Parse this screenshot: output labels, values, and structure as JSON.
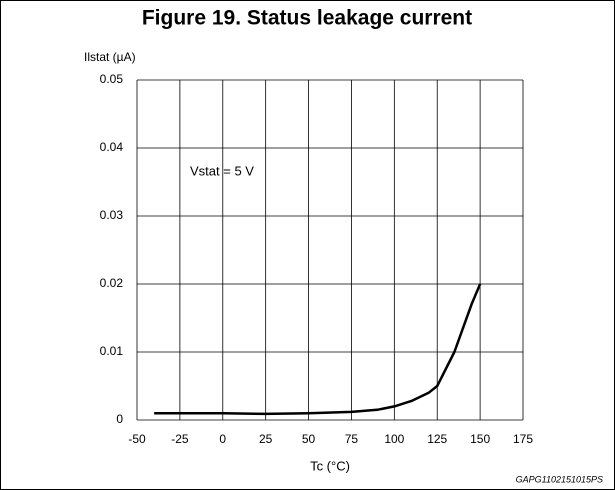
{
  "chart_data": {
    "type": "line",
    "title": "Figure 19. Status leakage current",
    "y_label": "Ilstat (µA)",
    "x_label": "Tc (°C)",
    "annotation": "Vstat = 5 V",
    "footer": "GAPG1102151015PS",
    "x": [
      -40,
      0,
      25,
      50,
      75,
      90,
      100,
      110,
      120,
      125,
      130,
      135,
      140,
      145,
      150
    ],
    "series": [
      {
        "color": "#000000",
        "values": [
          0.001,
          0.001,
          0.0009,
          0.001,
          0.0012,
          0.0015,
          0.002,
          0.0028,
          0.004,
          0.005,
          0.0075,
          0.01,
          0.0135,
          0.017,
          0.02
        ]
      }
    ],
    "xlim": [
      -50,
      175
    ],
    "xticks": [
      -50,
      -25,
      0,
      25,
      50,
      75,
      100,
      125,
      150,
      175
    ],
    "ylim": [
      0,
      0.05
    ],
    "yticks": [
      0,
      0.01,
      0.02,
      0.03,
      0.04,
      0.05
    ],
    "grid": true
  }
}
